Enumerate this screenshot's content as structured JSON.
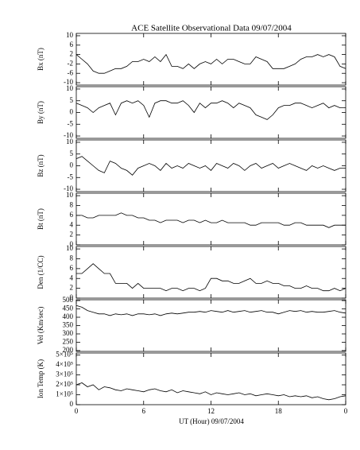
{
  "chart_data": [
    {
      "type": "line",
      "title": "ACE Satellite Observational Data   09/07/2004",
      "ylabel": "Bx (nT)",
      "color": "#000000",
      "x": [
        0,
        0.5,
        1,
        1.5,
        2,
        2.5,
        3,
        3.5,
        4,
        4.5,
        5,
        5.5,
        6,
        6.5,
        7,
        7.5,
        8,
        8.5,
        9,
        9.5,
        10,
        10.5,
        11,
        11.5,
        12,
        12.5,
        13,
        13.5,
        14,
        14.5,
        15,
        15.5,
        16,
        16.5,
        17,
        17.5,
        18,
        18.5,
        19,
        19.5,
        20,
        20.5,
        21,
        21.5,
        22,
        22.5,
        23,
        23.5,
        24
      ],
      "values": [
        2,
        0,
        -2,
        -5,
        -6,
        -6,
        -5,
        -4,
        -4,
        -3,
        -1,
        -1,
        0,
        -1,
        1,
        -1,
        2,
        -3,
        -3,
        -4,
        -2,
        -4,
        -2,
        -1,
        -2,
        0,
        -2,
        0,
        0,
        -1,
        -2,
        -2,
        1,
        0,
        -1,
        -4,
        -4,
        -4,
        -3,
        -2,
        0,
        1,
        1,
        2,
        1,
        2,
        1,
        -3,
        -4
      ],
      "ylim": [
        -11,
        11
      ],
      "yticks": [
        -10,
        -6,
        -2,
        2,
        6,
        10
      ]
    },
    {
      "type": "line",
      "ylabel": "By (nT)",
      "color": "#000000",
      "x": [
        0,
        0.5,
        1,
        1.5,
        2,
        2.5,
        3,
        3.5,
        4,
        4.5,
        5,
        5.5,
        6,
        6.5,
        7,
        7.5,
        8,
        8.5,
        9,
        9.5,
        10,
        10.5,
        11,
        11.5,
        12,
        12.5,
        13,
        13.5,
        14,
        14.5,
        15,
        15.5,
        16,
        16.5,
        17,
        17.5,
        18,
        18.5,
        19,
        19.5,
        20,
        20.5,
        21,
        21.5,
        22,
        22.5,
        23,
        23.5,
        24
      ],
      "values": [
        4,
        3,
        2,
        0,
        2,
        3,
        4,
        -1,
        4,
        5,
        4,
        5,
        3,
        -2,
        4,
        5,
        5,
        4,
        4,
        5,
        3,
        0,
        4,
        2,
        4,
        4,
        5,
        4,
        2,
        4,
        3,
        2,
        -1,
        -2,
        -3,
        -1,
        2,
        3,
        3,
        4,
        4,
        3,
        2,
        3,
        4,
        2,
        3,
        2,
        2
      ],
      "ylim": [
        -11,
        11
      ],
      "yticks": [
        -10,
        -5,
        0,
        5,
        10
      ]
    },
    {
      "type": "line",
      "ylabel": "Bz (nT)",
      "color": "#000000",
      "x": [
        0,
        0.5,
        1,
        1.5,
        2,
        2.5,
        3,
        3.5,
        4,
        4.5,
        5,
        5.5,
        6,
        6.5,
        7,
        7.5,
        8,
        8.5,
        9,
        9.5,
        10,
        10.5,
        11,
        11.5,
        12,
        12.5,
        13,
        13.5,
        14,
        14.5,
        15,
        15.5,
        16,
        16.5,
        17,
        17.5,
        18,
        18.5,
        19,
        19.5,
        20,
        20.5,
        21,
        21.5,
        22,
        22.5,
        23,
        23.5,
        24
      ],
      "values": [
        3,
        4,
        2,
        0,
        -2,
        -3,
        2,
        1,
        -1,
        -2,
        -4,
        -1,
        0,
        1,
        0,
        -2,
        1,
        -1,
        0,
        -1,
        1,
        0,
        -1,
        0,
        -2,
        1,
        0,
        -1,
        1,
        0,
        -2,
        0,
        1,
        -1,
        0,
        1,
        -1,
        0,
        1,
        0,
        -1,
        -2,
        0,
        -1,
        0,
        -1,
        -2,
        -1,
        -1
      ],
      "ylim": [
        -11,
        11
      ],
      "yticks": [
        -10,
        -5,
        0,
        5,
        10
      ]
    },
    {
      "type": "line",
      "ylabel": "Bt (nT)",
      "color": "#000000",
      "x": [
        0,
        0.5,
        1,
        1.5,
        2,
        2.5,
        3,
        3.5,
        4,
        4.5,
        5,
        5.5,
        6,
        6.5,
        7,
        7.5,
        8,
        8.5,
        9,
        9.5,
        10,
        10.5,
        11,
        11.5,
        12,
        12.5,
        13,
        13.5,
        14,
        14.5,
        15,
        15.5,
        16,
        16.5,
        17,
        17.5,
        18,
        18.5,
        19,
        19.5,
        20,
        20.5,
        21,
        21.5,
        22,
        22.5,
        23,
        23.5,
        24
      ],
      "values": [
        6,
        6,
        5.5,
        5.5,
        6,
        6,
        6,
        6,
        6.5,
        6,
        6,
        5.5,
        5.5,
        5,
        5,
        4.5,
        5,
        5,
        5,
        4.5,
        5,
        5,
        4.5,
        5,
        4.5,
        4.5,
        5,
        4.5,
        4.5,
        4.5,
        4.5,
        4,
        4,
        4.5,
        4.5,
        4.5,
        4.5,
        4,
        4,
        4.5,
        4.5,
        4,
        4,
        4,
        4,
        3.5,
        4,
        4,
        4
      ],
      "ylim": [
        0,
        10.5
      ],
      "yticks": [
        0,
        2,
        4,
        6,
        8,
        10
      ]
    },
    {
      "type": "line",
      "ylabel": "Den (1/CC)",
      "color": "#000000",
      "x": [
        0,
        0.5,
        1,
        1.5,
        2,
        2.5,
        3,
        3.5,
        4,
        4.5,
        5,
        5.5,
        6,
        6.5,
        7,
        7.5,
        8,
        8.5,
        9,
        9.5,
        10,
        10.5,
        11,
        11.5,
        12,
        12.5,
        13,
        13.5,
        14,
        14.5,
        15,
        15.5,
        16,
        16.5,
        17,
        17.5,
        18,
        18.5,
        19,
        19.5,
        20,
        20.5,
        21,
        21.5,
        22,
        22.5,
        23,
        23.5,
        24
      ],
      "values": [
        5,
        5,
        6,
        7,
        6,
        5,
        5,
        3,
        3,
        3,
        2,
        3,
        2,
        2,
        2,
        2,
        1.5,
        2,
        2,
        1.5,
        2,
        2,
        1.5,
        2,
        4,
        4,
        3.5,
        3.5,
        3,
        3,
        3.5,
        4,
        3,
        3,
        3.5,
        3,
        3,
        2.5,
        2.5,
        2,
        2,
        2.5,
        2,
        2,
        1.5,
        1.5,
        2,
        1.5,
        2
      ],
      "ylim": [
        0,
        10.5
      ],
      "yticks": [
        0,
        2,
        4,
        6,
        8,
        10
      ]
    },
    {
      "type": "line",
      "ylabel": "Vel (Km/sec)",
      "color": "#000000",
      "x": [
        0,
        0.5,
        1,
        1.5,
        2,
        2.5,
        3,
        3.5,
        4,
        4.5,
        5,
        5.5,
        6,
        6.5,
        7,
        7.5,
        8,
        8.5,
        9,
        9.5,
        10,
        10.5,
        11,
        11.5,
        12,
        12.5,
        13,
        13.5,
        14,
        14.5,
        15,
        15.5,
        16,
        16.5,
        17,
        17.5,
        18,
        18.5,
        19,
        19.5,
        20,
        20.5,
        21,
        21.5,
        22,
        22.5,
        23,
        23.5,
        24
      ],
      "values": [
        470,
        460,
        440,
        430,
        420,
        420,
        410,
        420,
        415,
        420,
        410,
        420,
        420,
        415,
        420,
        410,
        420,
        425,
        420,
        425,
        430,
        430,
        435,
        430,
        440,
        435,
        430,
        440,
        430,
        435,
        440,
        430,
        435,
        440,
        430,
        430,
        420,
        430,
        440,
        435,
        440,
        430,
        435,
        430,
        430,
        435,
        440,
        430,
        425
      ],
      "ylim": [
        195,
        505
      ],
      "yticks": [
        200,
        250,
        300,
        350,
        400,
        450,
        500
      ]
    },
    {
      "type": "line",
      "ylabel": "Ion Temp (K)",
      "xlabel": "UT (Hour)  09/07/2004",
      "color": "#000000",
      "x": [
        0,
        0.5,
        1,
        1.5,
        2,
        2.5,
        3,
        3.5,
        4,
        4.5,
        5,
        5.5,
        6,
        6.5,
        7,
        7.5,
        8,
        8.5,
        9,
        9.5,
        10,
        10.5,
        11,
        11.5,
        12,
        12.5,
        13,
        13.5,
        14,
        14.5,
        15,
        15.5,
        16,
        16.5,
        17,
        17.5,
        18,
        18.5,
        19,
        19.5,
        20,
        20.5,
        21,
        21.5,
        22,
        22.5,
        23,
        23.5,
        24
      ],
      "values": [
        200000,
        220000,
        180000,
        200000,
        150000,
        180000,
        170000,
        150000,
        140000,
        160000,
        150000,
        140000,
        130000,
        150000,
        160000,
        140000,
        130000,
        150000,
        120000,
        140000,
        130000,
        120000,
        110000,
        130000,
        100000,
        120000,
        110000,
        100000,
        110000,
        120000,
        100000,
        110000,
        90000,
        100000,
        110000,
        100000,
        90000,
        100000,
        80000,
        90000,
        80000,
        90000,
        70000,
        80000,
        60000,
        50000,
        60000,
        80000,
        90000
      ],
      "ylim": [
        0,
        520000
      ],
      "yticks": [
        0,
        {
          "value": 100000,
          "label": "1×10⁵"
        },
        {
          "value": 200000,
          "label": "2×10⁵"
        },
        {
          "value": 300000,
          "label": "3×10⁵"
        },
        {
          "value": 400000,
          "label": "4×10⁵"
        },
        {
          "value": 500000,
          "label": "5×10⁵"
        }
      ],
      "xlim": [
        0,
        24
      ],
      "xticks": [
        0,
        6,
        12,
        18,
        {
          "value": 24,
          "label": "0"
        }
      ]
    }
  ]
}
